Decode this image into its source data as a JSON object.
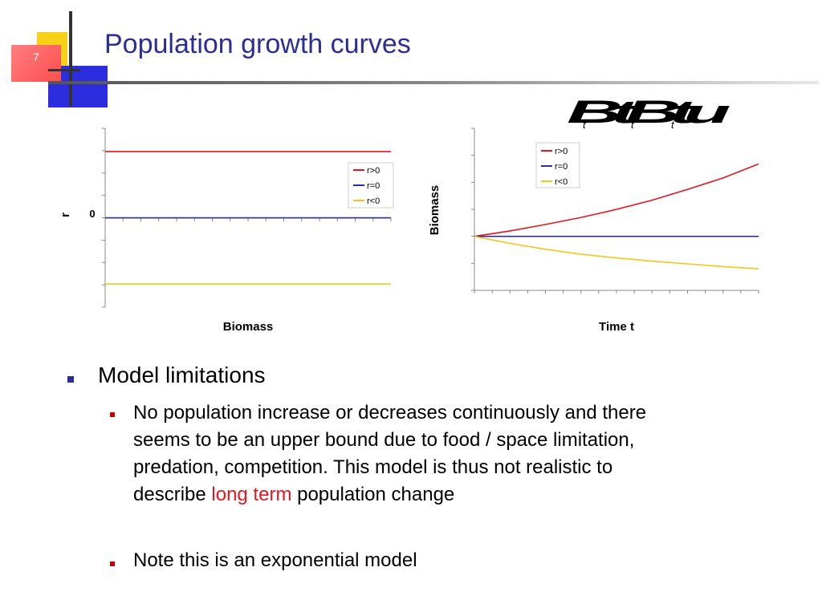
{
  "slide": {
    "number": "7",
    "title": "Population growth curves",
    "accent_colors": {
      "red": "#e8141e",
      "blue": "#2d2d96",
      "yellow": "#f5c518"
    }
  },
  "chart_data": [
    {
      "type": "line",
      "xlabel": "Biomass",
      "ylabel": "r",
      "y_tick_labels": [
        "0"
      ],
      "grid": false,
      "legend_position": "right",
      "series": [
        {
          "name": "r>0",
          "color": "#e8141e",
          "points": [
            [
              0,
              1
            ],
            [
              1,
              1
            ]
          ]
        },
        {
          "name": "r=0",
          "color": "#2d2d96",
          "points": [
            [
              0,
              0
            ],
            [
              1,
              0
            ]
          ]
        },
        {
          "name": "r<0",
          "color": "#f5c518",
          "points": [
            [
              0,
              -1
            ],
            [
              1,
              -1
            ]
          ]
        }
      ],
      "xlim": [
        0,
        1
      ],
      "ylim": [
        -1.35,
        1.35
      ]
    },
    {
      "type": "line",
      "xlabel": "Time t",
      "ylabel": "Biomass",
      "grid": false,
      "legend_position": "top-left",
      "equation_image": "B_{t+1} = B_t r",
      "series": [
        {
          "name": "r>0",
          "color": "#e8141e",
          "points": [
            [
              0,
              1
            ],
            [
              2,
              1.1
            ],
            [
              4,
              1.22
            ],
            [
              6,
              1.35
            ],
            [
              8,
              1.5
            ],
            [
              10,
              1.67
            ],
            [
              12,
              1.87
            ],
            [
              14,
              2.08
            ],
            [
              16,
              2.34
            ]
          ]
        },
        {
          "name": "r=0",
          "color": "#2d2d96",
          "points": [
            [
              0,
              1
            ],
            [
              16,
              1
            ]
          ]
        },
        {
          "name": "r<0",
          "color": "#f5c518",
          "points": [
            [
              0,
              1
            ],
            [
              2,
              0.87
            ],
            [
              4,
              0.76
            ],
            [
              6,
              0.67
            ],
            [
              8,
              0.6
            ],
            [
              10,
              0.54
            ],
            [
              12,
              0.49
            ],
            [
              14,
              0.44
            ],
            [
              16,
              0.4
            ]
          ]
        }
      ],
      "xlim": [
        0,
        16
      ],
      "ylim": [
        0,
        3
      ]
    }
  ],
  "bullets": {
    "level1": "Model limitations",
    "item1_lines": [
      "No population increase or decreases continuously and there",
      "seems to be an upper bound due to food / space limitation,",
      "predation, competition. This model is thus not realistic to"
    ],
    "item1_last_prefix": "describe ",
    "item1_highlight": "long term",
    "item1_last_suffix": " population change",
    "item2": "Note this is an exponential model"
  }
}
